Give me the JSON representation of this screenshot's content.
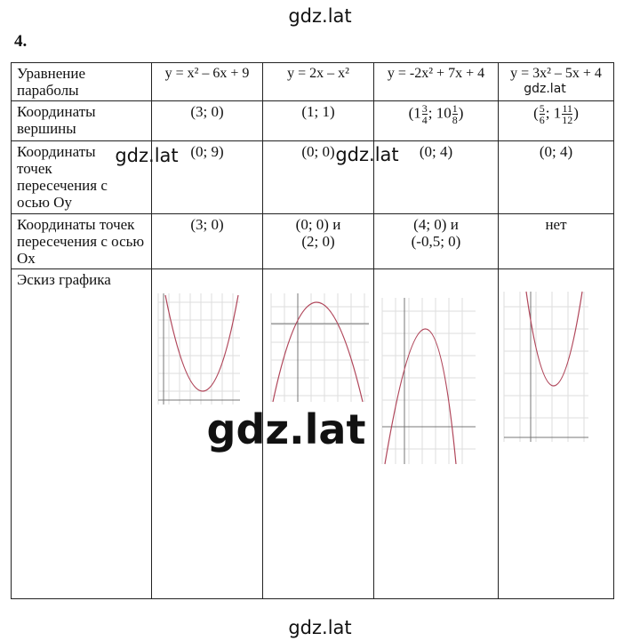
{
  "watermarks": [
    "gdz.lat",
    "gdz.lat",
    "gdz.lat",
    "gdz.lat",
    "gdz.lat",
    "gdz.lat"
  ],
  "task_number": "4.",
  "table": {
    "rows": [
      [
        "Уравнение параболы",
        "y = x² – 6x + 9",
        "y = 2x – x²",
        "y = -2x² + 7x + 4",
        "y = 3x² – 5x + 4"
      ],
      [
        "Координаты вершины",
        "(3; 0)",
        "(1; 1)",
        {
          "parts": [
            "(1",
            {
              "num": "3",
              "den": "4"
            },
            "; 10",
            {
              "num": "1",
              "den": "8"
            },
            ")"
          ]
        },
        {
          "parts": [
            "(",
            {
              "num": "5",
              "den": "6"
            },
            "; 1",
            {
              "num": "11",
              "den": "12"
            },
            ")"
          ]
        }
      ],
      [
        "Координаты точек пересечения с осью Oy",
        "(0; 9)",
        "(0; 0)",
        "(0; 4)",
        "(0; 4)"
      ],
      [
        "Координаты точек пересечения с осью Ox",
        "(3; 0)",
        {
          "lines": [
            "(0; 0) и",
            "(2; 0)"
          ]
        },
        {
          "lines": [
            "(4; 0) и",
            "(-0,5; 0)"
          ]
        },
        "нет"
      ],
      [
        "Эскиз графика"
      ]
    ]
  }
}
